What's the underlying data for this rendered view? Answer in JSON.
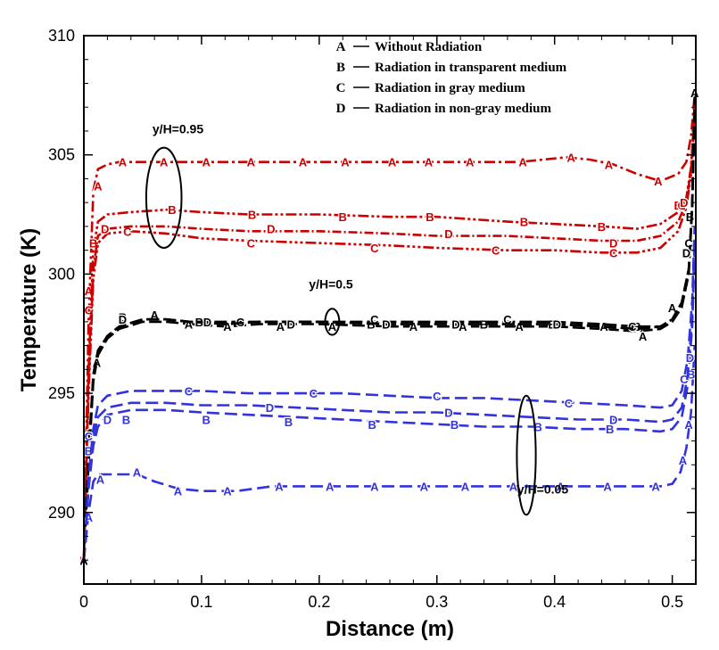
{
  "chart_data": {
    "type": "line",
    "xlabel": "Distance (m)",
    "ylabel": "Temperature (K)",
    "xlim": [
      0,
      0.52
    ],
    "ylim": [
      287,
      310
    ],
    "x_ticks": [
      0,
      0.1,
      0.2,
      0.3,
      0.4,
      0.5
    ],
    "x_tick_labels": [
      "0",
      "0.1",
      "0.2",
      "0.3",
      "0.4",
      "0.5"
    ],
    "y_ticks": [
      290,
      295,
      300,
      305,
      310
    ],
    "y_tick_labels": [
      "290",
      "295",
      "300",
      "305",
      "310"
    ],
    "legend": [
      {
        "letter": "A",
        "label": "Without Radiation"
      },
      {
        "letter": "B",
        "label": "Radiation in transparent medium"
      },
      {
        "letter": "C",
        "label": "Radiation in gray medium"
      },
      {
        "letter": "D",
        "label": "Radiation in non-gray medium"
      }
    ],
    "annotations": [
      {
        "text": "y/H=0.95",
        "x": 0.08,
        "y": 305.9,
        "circle": {
          "cx": 0.068,
          "cy": 303.2,
          "rx": 0.015,
          "ry": 2.1
        }
      },
      {
        "text": "y/H=0.5",
        "x": 0.21,
        "y": 299.4,
        "circle": {
          "cx": 0.211,
          "cy": 298.0,
          "rx": 0.006,
          "ry": 0.55
        }
      },
      {
        "text": "y/H=0.05",
        "x": 0.39,
        "y": 290.8,
        "circle": {
          "cx": 0.376,
          "cy": 292.4,
          "rx": 0.008,
          "ry": 2.5
        }
      }
    ],
    "series": [
      {
        "name": "A",
        "group": "y/H=0.95",
        "color": "#cc0000",
        "dash": "12,4,3,4",
        "x": [
          0,
          0.004,
          0.008,
          0.012,
          0.02,
          0.03,
          0.05,
          0.07,
          0.1,
          0.14,
          0.18,
          0.22,
          0.26,
          0.3,
          0.34,
          0.37,
          0.39,
          0.41,
          0.43,
          0.45,
          0.47,
          0.49,
          0.505,
          0.512,
          0.516,
          0.519
        ],
        "y": [
          288,
          298,
          303.5,
          304.4,
          304.6,
          304.7,
          304.7,
          304.7,
          304.7,
          304.7,
          304.7,
          304.7,
          304.7,
          304.7,
          304.7,
          304.7,
          304.8,
          304.9,
          304.8,
          304.6,
          304.2,
          303.9,
          304.2,
          304.7,
          305.8,
          307.5
        ],
        "markers": [
          [
            0,
            288
          ],
          [
            0.004,
            299.3
          ],
          [
            0.012,
            303.7
          ],
          [
            0.033,
            304.7
          ],
          [
            0.068,
            304.7
          ],
          [
            0.104,
            304.7
          ],
          [
            0.142,
            304.7
          ],
          [
            0.186,
            304.7
          ],
          [
            0.222,
            304.7
          ],
          [
            0.262,
            304.7
          ],
          [
            0.293,
            304.7
          ],
          [
            0.328,
            304.7
          ],
          [
            0.373,
            304.7
          ],
          [
            0.414,
            304.9
          ],
          [
            0.446,
            304.6
          ],
          [
            0.488,
            303.9
          ]
        ]
      },
      {
        "name": "B",
        "group": "y/H=0.95",
        "color": "#cc0000",
        "dash": "12,3,3,3,3,3",
        "x": [
          0,
          0.004,
          0.008,
          0.012,
          0.02,
          0.04,
          0.07,
          0.1,
          0.14,
          0.2,
          0.26,
          0.3,
          0.36,
          0.4,
          0.44,
          0.47,
          0.49,
          0.505,
          0.512,
          0.516,
          0.519
        ],
        "y": [
          288,
          296,
          301,
          302.2,
          302.5,
          302.6,
          302.7,
          302.6,
          302.5,
          302.5,
          302.4,
          302.4,
          302.2,
          302.1,
          302.0,
          301.9,
          302.1,
          302.6,
          303.2,
          304.5,
          307.0
        ],
        "markers": [
          [
            0.0,
            288
          ],
          [
            0.008,
            301.3
          ],
          [
            0.075,
            302.7
          ],
          [
            0.143,
            302.5
          ],
          [
            0.22,
            302.4
          ],
          [
            0.294,
            302.4
          ],
          [
            0.374,
            302.2
          ],
          [
            0.44,
            302.0
          ],
          [
            0.505,
            302.9
          ]
        ]
      },
      {
        "name": "C",
        "group": "y/H=0.95",
        "color": "#cc0000",
        "dash": "12,3,3,3,3,3,3,3",
        "x": [
          0,
          0.004,
          0.008,
          0.012,
          0.02,
          0.04,
          0.07,
          0.1,
          0.14,
          0.2,
          0.26,
          0.3,
          0.36,
          0.4,
          0.44,
          0.47,
          0.49,
          0.505,
          0.512,
          0.516,
          0.519
        ],
        "y": [
          288,
          295,
          299.8,
          301.3,
          301.7,
          301.8,
          301.7,
          301.5,
          301.4,
          301.3,
          301.2,
          301.1,
          301.0,
          301.0,
          300.9,
          300.9,
          301.1,
          301.8,
          302.8,
          304.2,
          306.5
        ],
        "markers": [
          [
            0.0,
            288
          ],
          [
            0.004,
            298.5
          ],
          [
            0.037,
            301.8
          ],
          [
            0.142,
            301.3
          ],
          [
            0.247,
            301.1
          ],
          [
            0.35,
            301.0
          ],
          [
            0.45,
            300.9
          ],
          [
            0.508,
            302.9
          ]
        ]
      },
      {
        "name": "D",
        "group": "y/H=0.95",
        "color": "#cc0000",
        "dash": "10,3,2,3",
        "x": [
          0,
          0.004,
          0.008,
          0.012,
          0.02,
          0.04,
          0.07,
          0.1,
          0.14,
          0.2,
          0.26,
          0.3,
          0.36,
          0.4,
          0.44,
          0.47,
          0.49,
          0.505,
          0.512,
          0.516,
          0.519
        ],
        "y": [
          288,
          295.5,
          300.2,
          301.6,
          301.9,
          302.0,
          302.0,
          301.9,
          301.8,
          301.8,
          301.7,
          301.6,
          301.6,
          301.5,
          301.4,
          301.4,
          301.6,
          302.2,
          303.0,
          304.4,
          306.8
        ],
        "markers": [
          [
            0.0,
            288
          ],
          [
            0.018,
            301.9
          ],
          [
            0.159,
            301.9
          ],
          [
            0.31,
            301.7
          ],
          [
            0.45,
            301.3
          ],
          [
            0.51,
            303.0
          ]
        ]
      },
      {
        "name": "A",
        "group": "y/H=0.5",
        "color": "#000000",
        "dash": "14,5",
        "x": [
          0,
          0.004,
          0.008,
          0.012,
          0.02,
          0.03,
          0.05,
          0.07,
          0.09,
          0.12,
          0.15,
          0.2,
          0.26,
          0.3,
          0.36,
          0.4,
          0.44,
          0.47,
          0.49,
          0.5,
          0.508,
          0.514,
          0.517,
          0.519
        ],
        "y": [
          288,
          292,
          295.5,
          296.6,
          297.3,
          297.7,
          298.0,
          298.0,
          297.9,
          297.8,
          297.9,
          297.9,
          297.8,
          297.8,
          297.8,
          297.8,
          297.7,
          297.6,
          297.7,
          298.0,
          298.6,
          300.0,
          302.8,
          307.6
        ],
        "markers": [
          [
            0,
            288
          ],
          [
            0.004,
            293.3
          ],
          [
            0.011,
            296.3
          ],
          [
            0.06,
            298.3
          ],
          [
            0.089,
            297.9
          ],
          [
            0.122,
            297.8
          ],
          [
            0.167,
            297.8
          ],
          [
            0.211,
            297.8
          ],
          [
            0.28,
            297.8
          ],
          [
            0.322,
            297.8
          ],
          [
            0.37,
            297.8
          ],
          [
            0.4,
            297.9
          ],
          [
            0.442,
            297.8
          ],
          [
            0.475,
            297.4
          ],
          [
            0.5,
            298.6
          ],
          [
            0.519,
            307.6
          ]
        ]
      },
      {
        "name": "B",
        "group": "y/H=0.5",
        "color": "#000000",
        "dash": "14,5",
        "x": [
          0,
          0.004,
          0.008,
          0.012,
          0.02,
          0.03,
          0.05,
          0.07,
          0.09,
          0.12,
          0.15,
          0.2,
          0.26,
          0.3,
          0.36,
          0.4,
          0.44,
          0.47,
          0.49,
          0.5,
          0.508,
          0.514,
          0.517,
          0.519
        ],
        "y": [
          288,
          292.5,
          295.8,
          296.8,
          297.4,
          297.8,
          298.1,
          298.1,
          298.0,
          297.9,
          298.0,
          298.0,
          297.9,
          297.9,
          297.9,
          297.9,
          297.8,
          297.7,
          297.8,
          298.1,
          298.8,
          300.2,
          303.0,
          307.2
        ],
        "markers": [
          [
            0.033,
            298.2
          ],
          [
            0.098,
            298.0
          ],
          [
            0.244,
            297.9
          ],
          [
            0.34,
            297.9
          ],
          [
            0.398,
            297.9
          ],
          [
            0.47,
            297.8
          ],
          [
            0.515,
            302.4
          ]
        ]
      },
      {
        "name": "C",
        "group": "y/H=0.5",
        "color": "#000000",
        "dash": "14,5",
        "x": [
          0,
          0.004,
          0.008,
          0.012,
          0.02,
          0.03,
          0.05,
          0.07,
          0.09,
          0.12,
          0.15,
          0.2,
          0.26,
          0.3,
          0.36,
          0.4,
          0.44,
          0.47,
          0.49,
          0.5,
          0.508,
          0.514,
          0.517,
          0.519
        ],
        "y": [
          288,
          292.2,
          295.6,
          296.7,
          297.4,
          297.8,
          298.1,
          298.1,
          298.0,
          298.0,
          298.0,
          298.0,
          298.0,
          298.0,
          298.0,
          298.0,
          297.9,
          297.8,
          297.8,
          298.1,
          298.8,
          300.2,
          302.9,
          307.0
        ],
        "markers": [
          [
            0.133,
            298.0
          ],
          [
            0.247,
            298.1
          ],
          [
            0.36,
            298.1
          ],
          [
            0.466,
            297.8
          ],
          [
            0.514,
            301.3
          ]
        ]
      },
      {
        "name": "D",
        "group": "y/H=0.5",
        "color": "#000000",
        "dash": "14,5",
        "x": [
          0,
          0.004,
          0.008,
          0.012,
          0.02,
          0.03,
          0.05,
          0.07,
          0.09,
          0.12,
          0.15,
          0.2,
          0.26,
          0.3,
          0.36,
          0.4,
          0.44,
          0.47,
          0.49,
          0.5,
          0.508,
          0.514,
          0.517,
          0.519
        ],
        "y": [
          288,
          292.3,
          295.7,
          296.7,
          297.4,
          297.8,
          298.1,
          298.1,
          298.0,
          297.9,
          298.0,
          298.0,
          297.9,
          297.9,
          297.9,
          297.9,
          297.8,
          297.7,
          297.8,
          298.1,
          298.8,
          300.1,
          302.9,
          307.1
        ],
        "markers": [
          [
            0.033,
            298.1
          ],
          [
            0.105,
            298.0
          ],
          [
            0.176,
            297.9
          ],
          [
            0.257,
            297.9
          ],
          [
            0.316,
            297.9
          ],
          [
            0.402,
            297.9
          ],
          [
            0.512,
            300.9
          ]
        ]
      },
      {
        "name": "A",
        "group": "y/H=0.05",
        "color": "#3333dd",
        "dash": "14,6",
        "x": [
          0,
          0.004,
          0.008,
          0.012,
          0.02,
          0.03,
          0.045,
          0.06,
          0.08,
          0.1,
          0.13,
          0.16,
          0.2,
          0.25,
          0.3,
          0.36,
          0.4,
          0.44,
          0.47,
          0.49,
          0.5,
          0.507,
          0.512,
          0.516,
          0.519
        ],
        "y": [
          288,
          290,
          291.3,
          291.6,
          291.6,
          291.6,
          291.6,
          291.3,
          291.0,
          290.9,
          290.9,
          291.1,
          291.1,
          291.1,
          291.1,
          291.1,
          291.1,
          291.1,
          291.1,
          291.1,
          291.2,
          291.7,
          292.7,
          294.2,
          297.0
        ],
        "markers": [
          [
            0.004,
            289.8
          ],
          [
            0.014,
            291.4
          ],
          [
            0.045,
            291.7
          ],
          [
            0.08,
            290.9
          ],
          [
            0.122,
            290.9
          ],
          [
            0.166,
            291.1
          ],
          [
            0.209,
            291.1
          ],
          [
            0.247,
            291.1
          ],
          [
            0.289,
            291.1
          ],
          [
            0.324,
            291.1
          ],
          [
            0.365,
            291.1
          ],
          [
            0.405,
            291.1
          ],
          [
            0.445,
            291.1
          ],
          [
            0.486,
            291.1
          ],
          [
            0.509,
            292.2
          ],
          [
            0.514,
            293.7
          ]
        ]
      },
      {
        "name": "B",
        "group": "y/H=0.05",
        "color": "#3333dd",
        "dash": "14,6",
        "x": [
          0,
          0.004,
          0.008,
          0.012,
          0.02,
          0.04,
          0.07,
          0.1,
          0.14,
          0.18,
          0.22,
          0.26,
          0.3,
          0.34,
          0.38,
          0.42,
          0.46,
          0.49,
          0.5,
          0.508,
          0.513,
          0.517,
          0.519
        ],
        "y": [
          288,
          291,
          292.8,
          293.6,
          294.1,
          294.3,
          294.3,
          294.2,
          294.1,
          294.0,
          293.9,
          293.8,
          293.7,
          293.6,
          293.6,
          293.5,
          293.5,
          293.4,
          293.5,
          294.0,
          295.3,
          297.8,
          301.0
        ],
        "markers": [
          [
            0.004,
            292.6
          ],
          [
            0.036,
            293.9
          ],
          [
            0.104,
            293.9
          ],
          [
            0.174,
            293.8
          ],
          [
            0.245,
            293.7
          ],
          [
            0.315,
            293.7
          ],
          [
            0.386,
            293.6
          ],
          [
            0.447,
            293.5
          ],
          [
            0.516,
            295.8
          ]
        ]
      },
      {
        "name": "C",
        "group": "y/H=0.05",
        "color": "#3333dd",
        "dash": "14,6",
        "x": [
          0,
          0.004,
          0.008,
          0.012,
          0.02,
          0.04,
          0.07,
          0.1,
          0.14,
          0.18,
          0.22,
          0.26,
          0.3,
          0.34,
          0.38,
          0.42,
          0.46,
          0.49,
          0.5,
          0.508,
          0.513,
          0.517,
          0.519
        ],
        "y": [
          288,
          291.5,
          293.5,
          294.5,
          294.9,
          295.1,
          295.1,
          295.1,
          295.0,
          295.0,
          295.0,
          294.9,
          294.8,
          294.8,
          294.7,
          294.6,
          294.5,
          294.4,
          294.5,
          295.1,
          296.4,
          298.9,
          302.0
        ],
        "markers": [
          [
            0.004,
            293.2
          ],
          [
            0.089,
            295.1
          ],
          [
            0.195,
            295.0
          ],
          [
            0.3,
            294.9
          ],
          [
            0.412,
            294.6
          ],
          [
            0.51,
            295.6
          ]
        ]
      },
      {
        "name": "D",
        "group": "y/H=0.05",
        "color": "#3333dd",
        "dash": "14,6",
        "x": [
          0,
          0.004,
          0.008,
          0.012,
          0.02,
          0.04,
          0.07,
          0.1,
          0.14,
          0.18,
          0.22,
          0.26,
          0.3,
          0.34,
          0.38,
          0.42,
          0.46,
          0.49,
          0.5,
          0.508,
          0.513,
          0.517,
          0.519
        ],
        "y": [
          288,
          291.2,
          293.1,
          294.0,
          294.4,
          294.6,
          294.6,
          294.5,
          294.5,
          294.4,
          294.3,
          294.2,
          294.2,
          294.1,
          294.0,
          293.9,
          293.9,
          293.8,
          293.9,
          294.4,
          295.7,
          298.2,
          301.5
        ],
        "markers": [
          [
            0.02,
            293.9
          ],
          [
            0.158,
            294.4
          ],
          [
            0.31,
            294.2
          ],
          [
            0.45,
            293.9
          ],
          [
            0.515,
            296.5
          ]
        ]
      }
    ]
  }
}
